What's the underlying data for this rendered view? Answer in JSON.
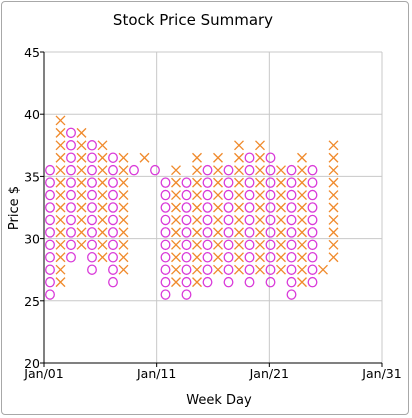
{
  "chart_data": {
    "type": "point-and-figure",
    "title": "Stock Price Summary",
    "xlabel": "Week Day",
    "ylabel": "Price $",
    "ylim": [
      20,
      45
    ],
    "yticks": [
      20,
      25,
      30,
      35,
      40,
      45
    ],
    "xlim": [
      "Jan/01",
      "Jan/31"
    ],
    "xticks": [
      "Jan/01",
      "Jan/11",
      "Jan/21",
      "Jan/31"
    ],
    "box_size": 1,
    "grid": true,
    "colors": {
      "x_marker": "#f08a2c",
      "o_marker": "#d93ad9",
      "grid": "#c8c8c8",
      "axis": "#000000"
    },
    "columns": [
      {
        "type": "O",
        "high": 35.5,
        "low": 25.5
      },
      {
        "type": "X",
        "high": 39.5,
        "low": 26.5
      },
      {
        "type": "O",
        "high": 38.5,
        "low": 28.5
      },
      {
        "type": "X",
        "high": 38.5,
        "low": 29.5
      },
      {
        "type": "O",
        "high": 37.5,
        "low": 27.5
      },
      {
        "type": "X",
        "high": 37.5,
        "low": 28.5
      },
      {
        "type": "O",
        "high": 36.5,
        "low": 26.5
      },
      {
        "type": "X",
        "high": 36.5,
        "low": 27.5
      },
      {
        "type": "O",
        "high": 35.5,
        "low": 35.5
      },
      {
        "type": "X",
        "high": 36.5,
        "low": 36.5
      },
      {
        "type": "O",
        "high": 35.5,
        "low": 35.5
      },
      {
        "type": "O",
        "high": 34.5,
        "low": 25.5
      },
      {
        "type": "X",
        "high": 35.5,
        "low": 26.5
      },
      {
        "type": "O",
        "high": 34.5,
        "low": 25.5
      },
      {
        "type": "X",
        "high": 36.5,
        "low": 26.5
      },
      {
        "type": "O",
        "high": 35.5,
        "low": 26.5
      },
      {
        "type": "X",
        "high": 36.5,
        "low": 27.5
      },
      {
        "type": "O",
        "high": 35.5,
        "low": 26.5
      },
      {
        "type": "X",
        "high": 37.5,
        "low": 27.5
      },
      {
        "type": "O",
        "high": 36.5,
        "low": 26.5
      },
      {
        "type": "X",
        "high": 37.5,
        "low": 27.5
      },
      {
        "type": "O",
        "high": 36.5,
        "low": 26.5
      },
      {
        "type": "X",
        "high": 35.5,
        "low": 27.5
      },
      {
        "type": "O",
        "high": 35.5,
        "low": 25.5
      },
      {
        "type": "X",
        "high": 36.5,
        "low": 26.5
      },
      {
        "type": "O",
        "high": 35.5,
        "low": 26.5
      },
      {
        "type": "X",
        "high": 27.5,
        "low": 27.5
      },
      {
        "type": "X",
        "high": 37.5,
        "low": 28.5
      }
    ]
  }
}
